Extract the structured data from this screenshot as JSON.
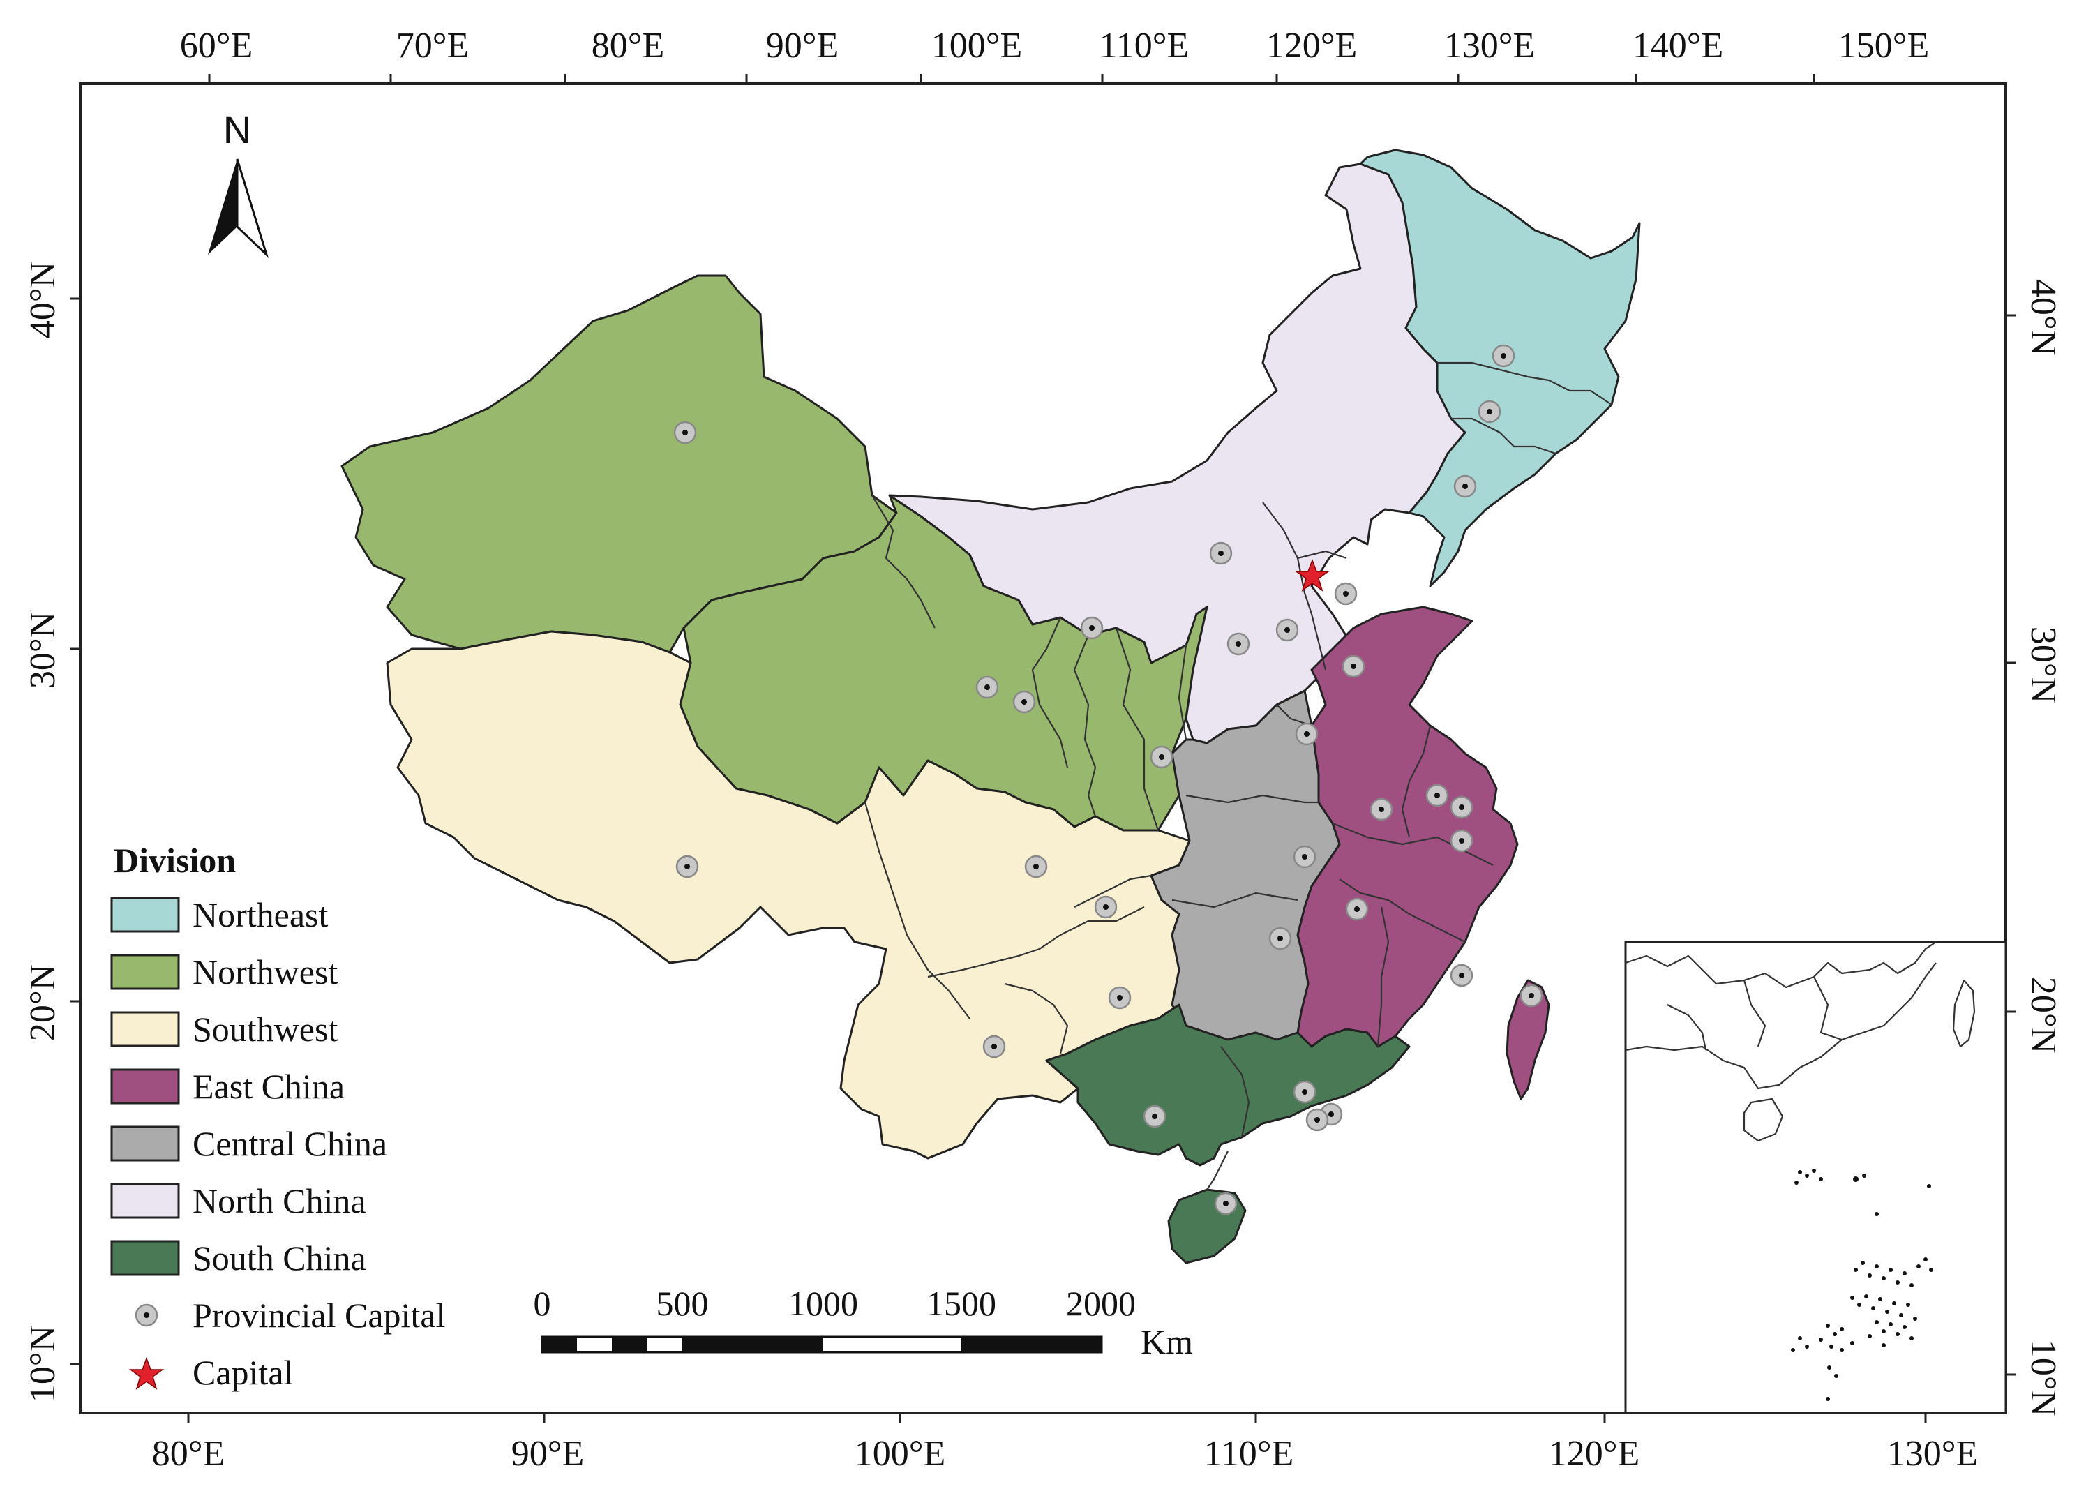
{
  "top_axis": {
    "ticks": [
      "60°E",
      "70°E",
      "80°E",
      "90°E",
      "100°E",
      "110°E",
      "120°E",
      "130°E",
      "140°E",
      "150°E"
    ]
  },
  "bottom_axis": {
    "ticks": [
      "80°E",
      "90°E",
      "100°E",
      "110°E",
      "120°E",
      "130°E"
    ]
  },
  "left_axis": {
    "ticks": [
      "40°N",
      "30°N",
      "20°N",
      "10°N"
    ]
  },
  "right_axis": {
    "ticks": [
      "40°N",
      "30°N",
      "20°N",
      "10°N"
    ]
  },
  "north_arrow": {
    "label": "N",
    "icon": "north-arrow-icon"
  },
  "legend": {
    "title": "Division",
    "items": [
      {
        "label": "Northeast",
        "color": "#A7D8D6"
      },
      {
        "label": "Northwest",
        "color": "#98B86E"
      },
      {
        "label": "Southwest",
        "color": "#F8F0D0"
      },
      {
        "label": "East China",
        "color": "#A05080"
      },
      {
        "label": "Central China",
        "color": "#ABABAB"
      },
      {
        "label": "North China",
        "color": "#EAE5F0"
      },
      {
        "label": "South China",
        "color": "#4A7A55"
      }
    ],
    "provincial_capital_label": "Provincial Capital",
    "capital_label": "Capital"
  },
  "scale_bar": {
    "labels": [
      "0",
      "500",
      "1000",
      "1500",
      "2000"
    ],
    "unit": "Km"
  },
  "colors": {
    "capital_star": "#E0202A",
    "capital_marker_fill": "#C8C8C8",
    "frame": "#222222"
  }
}
